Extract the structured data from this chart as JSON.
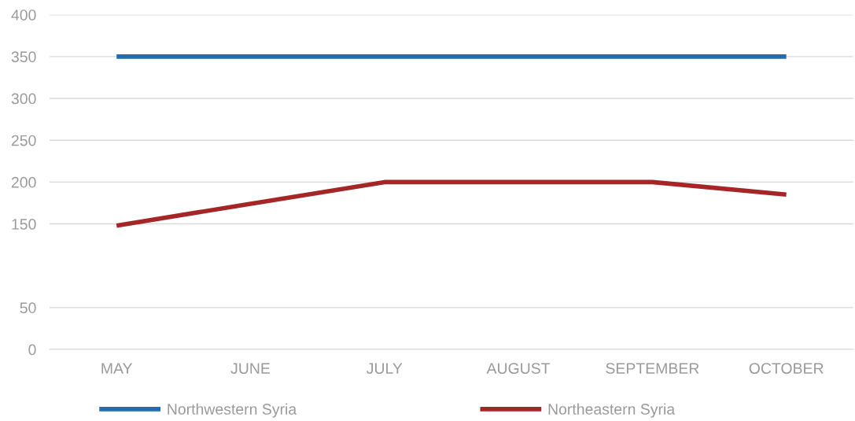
{
  "chart_data": {
    "type": "line",
    "categories": [
      "MAY",
      "JUNE",
      "JULY",
      "AUGUST",
      "SEPTEMBER",
      "OCTOBER"
    ],
    "series": [
      {
        "name": "Northwestern Syria",
        "color": "#1f6db5",
        "values": [
          350,
          350,
          350,
          350,
          350,
          350
        ]
      },
      {
        "name": "Northeastern Syria",
        "color": "#a52626",
        "values": [
          148,
          174,
          200,
          200,
          200,
          185
        ]
      }
    ],
    "ylim": [
      0,
      400
    ],
    "yticks": [
      0,
      50,
      150,
      200,
      250,
      300,
      350,
      400
    ],
    "grid": "y",
    "legend": "bottom",
    "marker": "none",
    "line_style": "solid"
  }
}
